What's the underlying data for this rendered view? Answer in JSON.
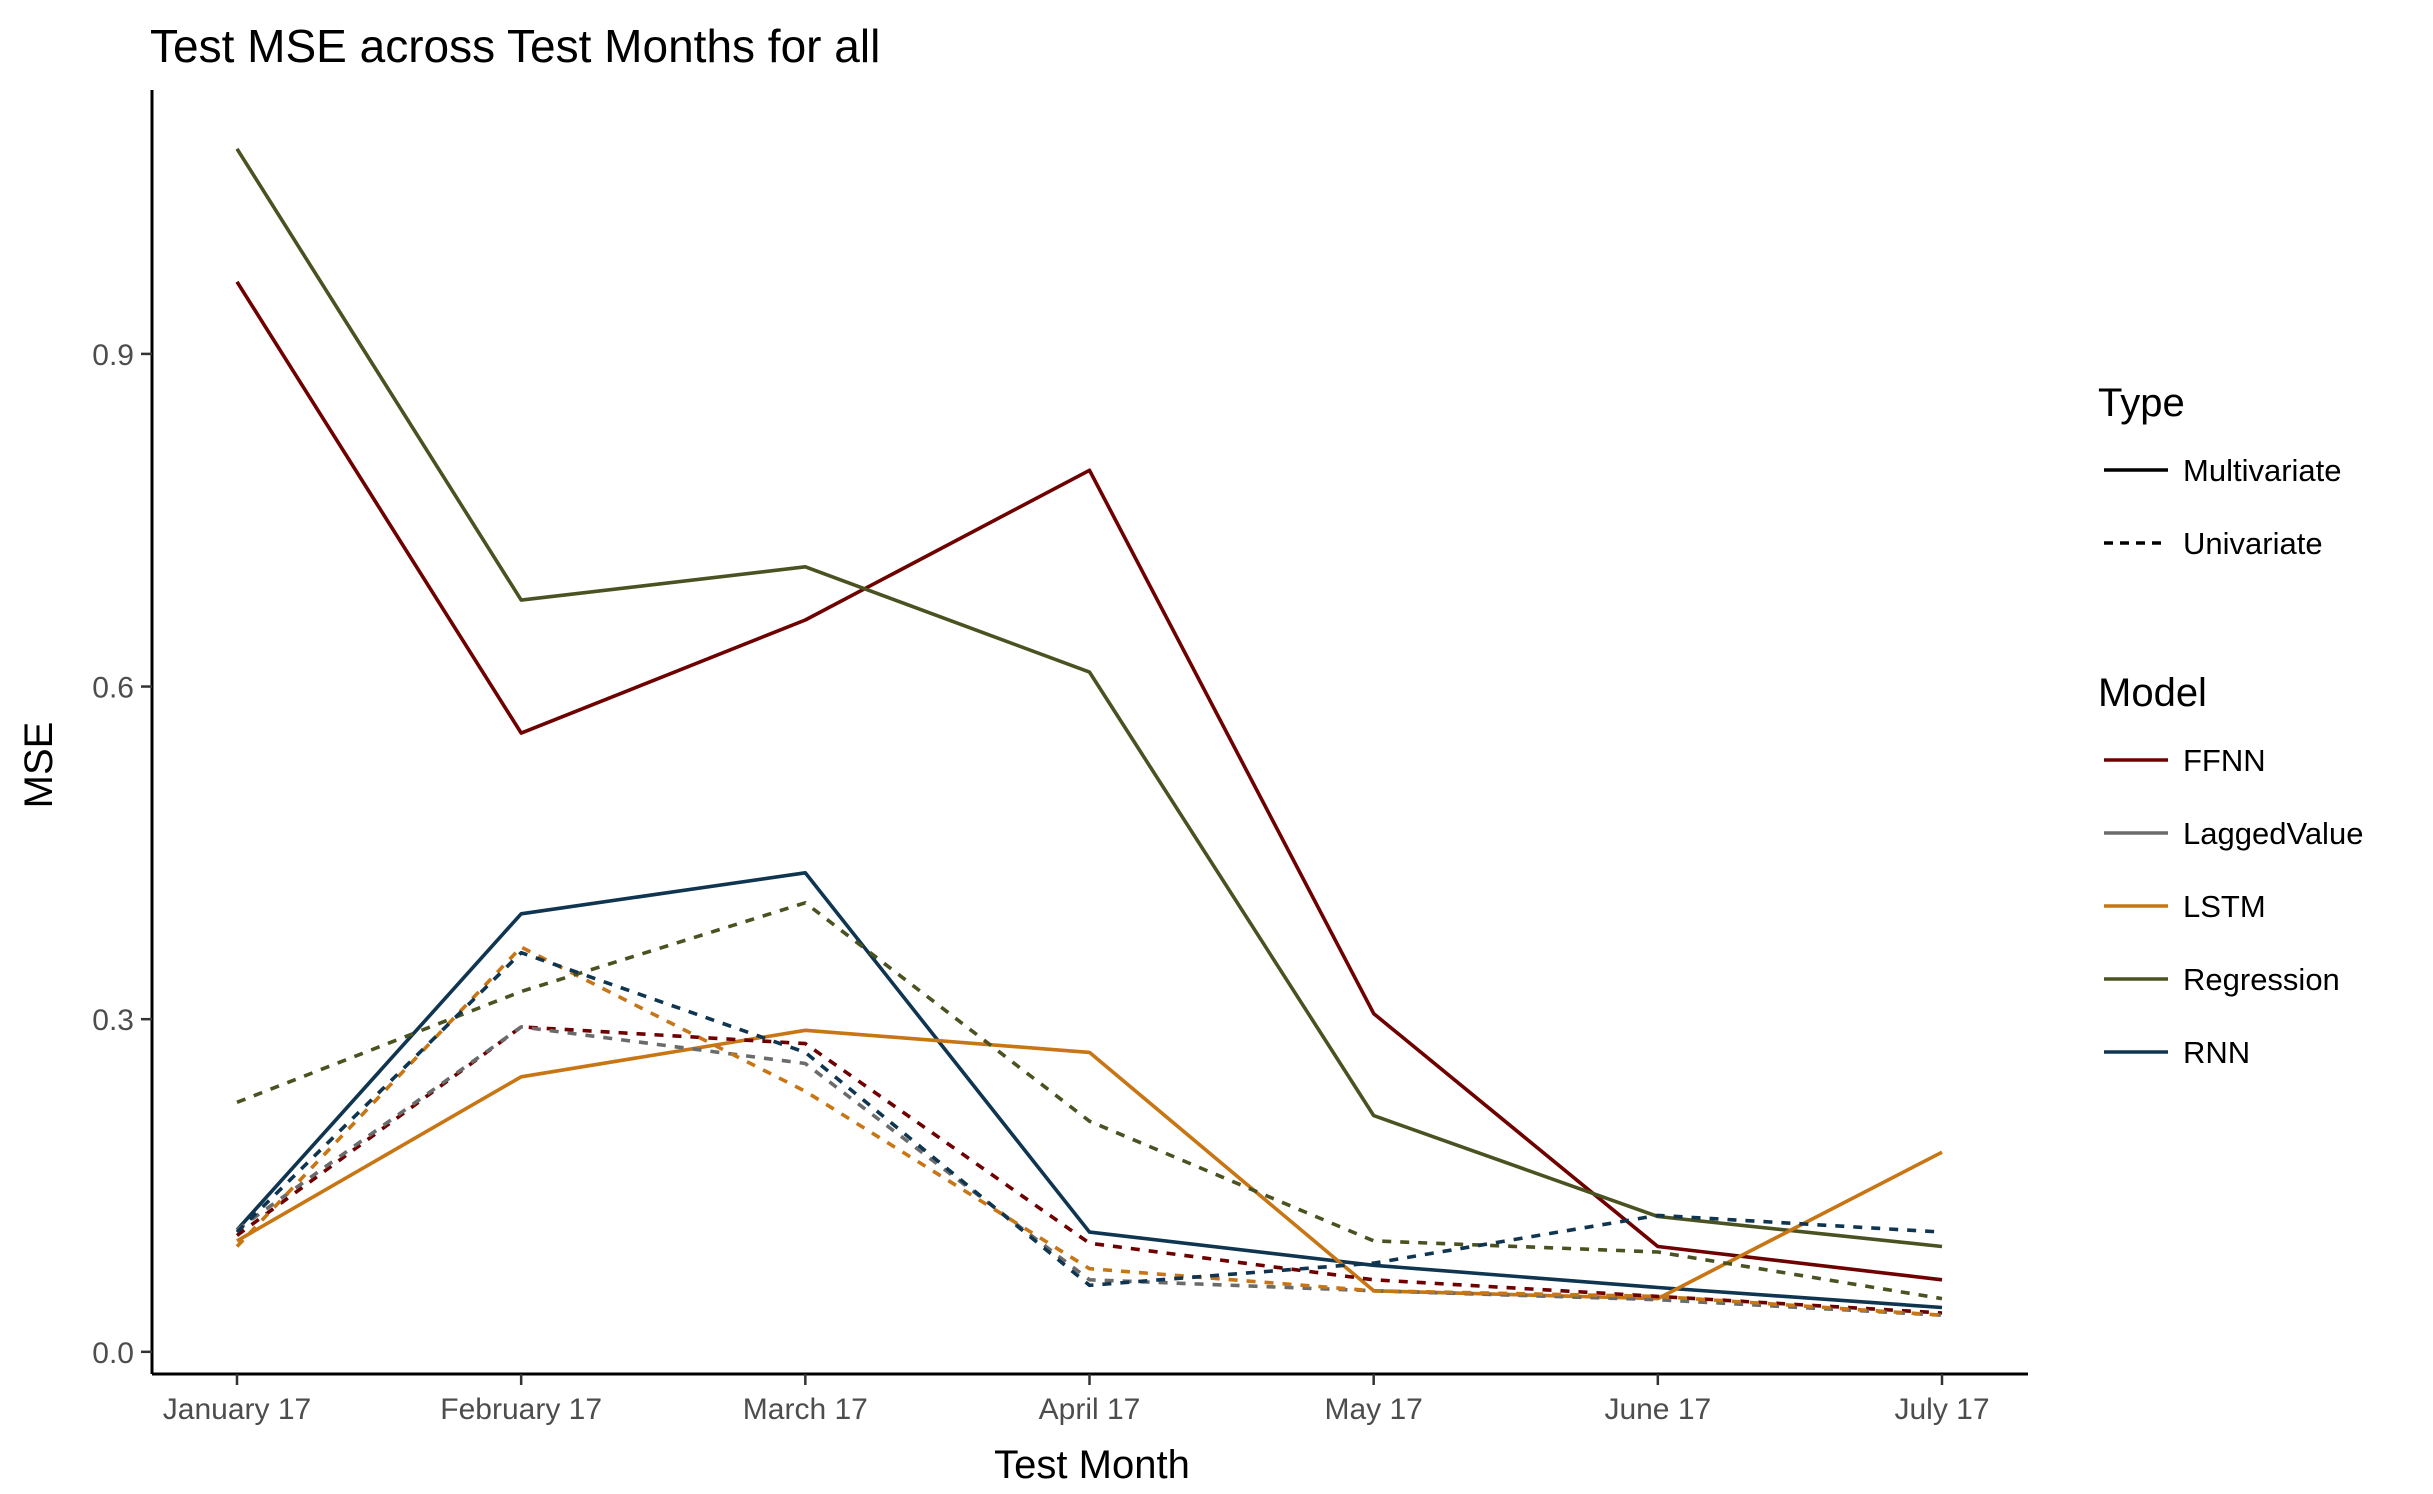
{
  "chart_data": {
    "type": "line",
    "title": "Test MSE across Test Months for all",
    "xlabel": "Test Month",
    "ylabel": "MSE",
    "categories": [
      "January 17",
      "February 17",
      "March 17",
      "April 17",
      "May 17",
      "June 17",
      "July 17"
    ],
    "y_ticks": [
      0.0,
      0.3,
      0.6,
      0.9
    ],
    "y_tick_labels": [
      "0.0",
      "0.3",
      "0.6",
      "0.9"
    ],
    "ylim": [
      -0.02,
      1.138
    ],
    "grid": false,
    "legend_position": "right",
    "legend_type_title": "Type",
    "legend_model_title": "Model",
    "types": [
      {
        "name": "Multivariate",
        "dash": "solid"
      },
      {
        "name": "Univariate",
        "dash": "dashed"
      }
    ],
    "models": [
      {
        "name": "FFNN",
        "color": "#6E0000"
      },
      {
        "name": "LaggedValue",
        "color": "#6B6B6B"
      },
      {
        "name": "LSTM",
        "color": "#C87514"
      },
      {
        "name": "Regression",
        "color": "#4B5221"
      },
      {
        "name": "RNN",
        "color": "#0F3550"
      }
    ],
    "series": [
      {
        "model": "FFNN",
        "type": "Multivariate",
        "values": [
          0.965,
          0.558,
          0.66,
          0.795,
          0.305,
          0.095,
          0.065
        ]
      },
      {
        "model": "Regression",
        "type": "Multivariate",
        "values": [
          1.085,
          0.678,
          0.708,
          0.613,
          0.213,
          0.122,
          0.095
        ]
      },
      {
        "model": "RNN",
        "type": "Multivariate",
        "values": [
          0.11,
          0.395,
          0.432,
          0.108,
          0.078,
          0.058,
          0.04
        ]
      },
      {
        "model": "LSTM",
        "type": "Multivariate",
        "values": [
          0.1,
          0.248,
          0.29,
          0.27,
          0.055,
          0.048,
          0.18
        ]
      },
      {
        "model": "FFNN",
        "type": "Univariate",
        "values": [
          0.105,
          0.293,
          0.278,
          0.098,
          0.065,
          0.05,
          0.035
        ]
      },
      {
        "model": "LaggedValue",
        "type": "Univariate",
        "values": [
          0.11,
          0.293,
          0.26,
          0.065,
          0.055,
          0.047,
          0.033
        ]
      },
      {
        "model": "LSTM",
        "type": "Univariate",
        "values": [
          0.095,
          0.365,
          0.235,
          0.075,
          0.055,
          0.05,
          0.033
        ]
      },
      {
        "model": "Regression",
        "type": "Univariate",
        "values": [
          0.225,
          0.325,
          0.405,
          0.208,
          0.1,
          0.09,
          0.048
        ]
      },
      {
        "model": "RNN",
        "type": "Univariate",
        "values": [
          0.108,
          0.36,
          0.27,
          0.06,
          0.08,
          0.123,
          0.108
        ]
      }
    ]
  }
}
